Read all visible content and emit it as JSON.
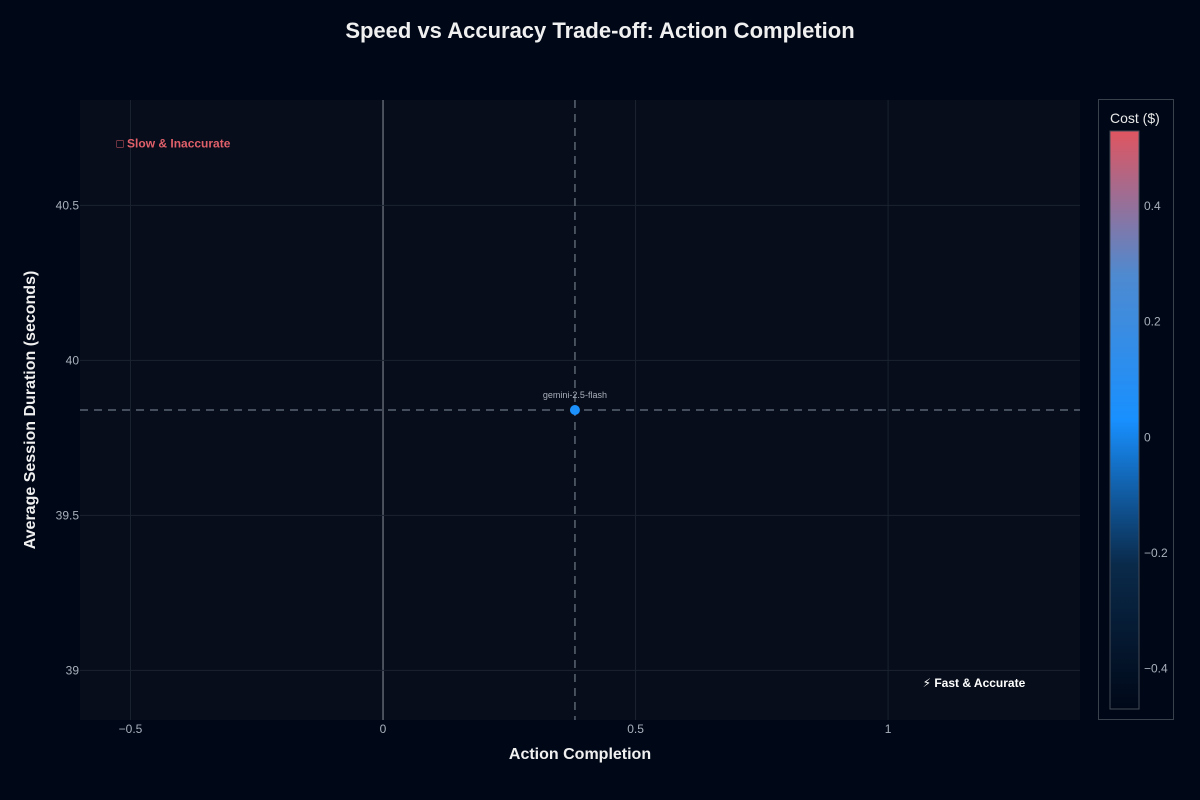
{
  "chart_data": {
    "type": "scatter",
    "title": "Speed vs Accuracy Trade-off: Action Completion",
    "xlabel": "Action Completion",
    "ylabel": "Average Session Duration (seconds)",
    "xlim": [
      -0.6,
      1.38
    ],
    "ylim": [
      38.84,
      40.84
    ],
    "x_ticks": [
      -0.5,
      0,
      0.5,
      1
    ],
    "x_tick_labels": [
      "−0.5",
      "0",
      "0.5",
      "1"
    ],
    "y_ticks": [
      39,
      39.5,
      40,
      40.5
    ],
    "y_tick_labels": [
      "39",
      "39.5",
      "40",
      "40.5"
    ],
    "grid": true,
    "points": [
      {
        "label": "gemini-2.5-flash",
        "x": 0.38,
        "y": 39.84,
        "cost": 0.05
      }
    ],
    "reference_lines": {
      "x": 0.38,
      "y": 39.84
    },
    "annotations": [
      {
        "text": "□ Slow & Inaccurate",
        "x": -0.415,
        "y": 40.7,
        "color": "#e0606a"
      },
      {
        "text": "⚡ Fast & Accurate",
        "x": 1.17,
        "y": 38.96,
        "color": "#ffffff"
      }
    ],
    "colorbar": {
      "title": "Cost ($)",
      "range": [
        -0.47,
        0.53
      ],
      "ticks": [
        0.4,
        0.2,
        0,
        -0.2,
        -0.4
      ],
      "tick_labels": [
        "0.4",
        "0.2",
        "0",
        "−0.2",
        "−0.4"
      ],
      "colors": [
        "#e05560",
        "#4e8ad0",
        "#1890ff",
        "#0a2a4a",
        "#000818"
      ]
    }
  }
}
